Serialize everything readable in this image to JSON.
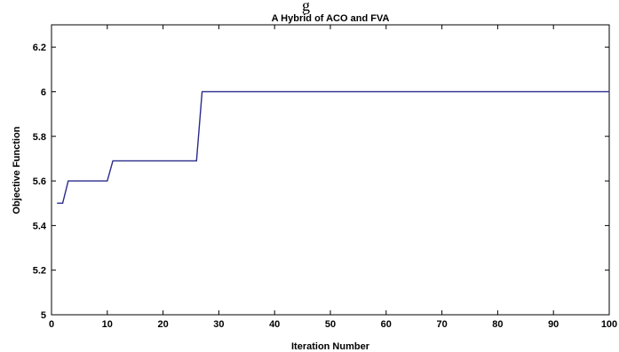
{
  "top_fragment": "g",
  "chart_data": {
    "type": "line",
    "title": "A Hybrid of ACO and FVA",
    "xlabel": "Iteration Number",
    "ylabel": "Objective Function",
    "xlim": [
      0,
      100
    ],
    "ylim": [
      5,
      6.3
    ],
    "xticks": [
      "0",
      "10",
      "20",
      "30",
      "40",
      "50",
      "60",
      "70",
      "80",
      "90",
      "100"
    ],
    "yticks": [
      "5",
      "5.2",
      "5.4",
      "5.6",
      "5.8",
      "6",
      "6.2"
    ],
    "grid": false,
    "colors": {
      "line": "#2a2a8c"
    },
    "series": [
      {
        "x": [
          1,
          2,
          3,
          10,
          11,
          26,
          27,
          100
        ],
        "y": [
          5.5,
          5.5,
          5.6,
          5.6,
          5.69,
          5.69,
          6.0,
          6.0
        ]
      }
    ]
  }
}
